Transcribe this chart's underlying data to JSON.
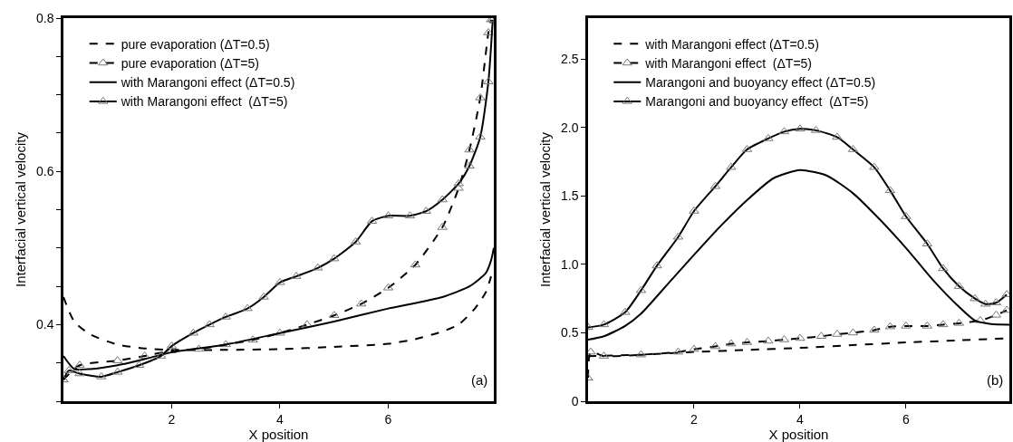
{
  "chart_data": [
    {
      "type": "line",
      "xlabel": "X position",
      "ylabel": "Interfacial vertical velocity",
      "xlim": [
        0,
        7.95
      ],
      "ylim": [
        0.3,
        0.8
      ],
      "xticks": [
        2,
        4,
        6
      ],
      "yticks": [
        {
          "value": 0.3,
          "label": null
        },
        {
          "value": 0.35,
          "label": null
        },
        0.4,
        {
          "value": 0.45,
          "label": null
        },
        {
          "value": 0.5,
          "label": null
        },
        {
          "value": 0.55,
          "label": null
        },
        0.6,
        {
          "value": 0.65,
          "label": null
        },
        {
          "value": 0.7,
          "label": null
        },
        {
          "value": 0.75,
          "label": null
        },
        0.8
      ],
      "grid": false,
      "legend": "top left",
      "annotations": [
        "(a)"
      ],
      "series": [
        {
          "name": "pure evaporation (ΔT=0.5)",
          "color": "#000000",
          "line_style": "dashed",
          "marker": "none",
          "x": [
            0,
            0.2,
            0.5,
            1,
            1.5,
            2,
            3,
            4,
            5,
            6,
            6.5,
            7,
            7.3,
            7.6,
            7.8,
            7.9
          ],
          "values": [
            0.436,
            0.404,
            0.387,
            0.374,
            0.369,
            0.367,
            0.367,
            0.368,
            0.371,
            0.375,
            0.381,
            0.391,
            0.4,
            0.421,
            0.442,
            0.463
          ]
        },
        {
          "name": "pure evaporation (ΔT=5)",
          "color": "#000000",
          "line_style": "dashed",
          "marker": "triangle",
          "x": [
            0,
            0.3,
            1,
            1.5,
            2,
            2.5,
            3,
            3.5,
            4,
            4.5,
            5,
            5.5,
            6,
            6.5,
            7,
            7.3,
            7.5,
            7.7,
            7.85,
            7.9
          ],
          "values": [
            0.328,
            0.347,
            0.353,
            0.359,
            0.366,
            0.368,
            0.374,
            0.38,
            0.389,
            0.4,
            0.412,
            0.427,
            0.448,
            0.478,
            0.527,
            0.578,
            0.628,
            0.696,
            0.781,
            0.798
          ]
        },
        {
          "name": "with Marangoni effect (ΔT=0.5)",
          "color": "#000000",
          "line_style": "solid",
          "marker": "none",
          "x": [
            0,
            0.2,
            0.5,
            1,
            1.5,
            2,
            3,
            4,
            5,
            6,
            7,
            7.5,
            7.8,
            7.9,
            7.95
          ],
          "values": [
            0.359,
            0.342,
            0.342,
            0.347,
            0.355,
            0.364,
            0.374,
            0.389,
            0.404,
            0.421,
            0.436,
            0.45,
            0.467,
            0.484,
            0.5
          ]
        },
        {
          "name": "with Marangoni effect  (ΔT=5)",
          "color": "#000000",
          "line_style": "solid",
          "marker": "triangle",
          "x": [
            0,
            0.1,
            0.3,
            0.7,
            1,
            1.4,
            1.8,
            2,
            2.4,
            2.7,
            3,
            3.4,
            3.7,
            4,
            4.3,
            4.7,
            5,
            5.4,
            5.7,
            6,
            6.4,
            6.7,
            7,
            7.3,
            7.5,
            7.7,
            7.85,
            7.93
          ],
          "values": [
            0.328,
            0.34,
            0.336,
            0.332,
            0.338,
            0.347,
            0.359,
            0.372,
            0.389,
            0.4,
            0.41,
            0.421,
            0.436,
            0.455,
            0.463,
            0.474,
            0.486,
            0.508,
            0.535,
            0.542,
            0.542,
            0.548,
            0.563,
            0.584,
            0.607,
            0.645,
            0.717,
            0.798
          ]
        }
      ]
    },
    {
      "type": "line",
      "xlabel": "X position",
      "ylabel": "Interfacial vertical velocity",
      "xlim": [
        0,
        7.95
      ],
      "ylim": [
        0,
        2.8
      ],
      "xticks": [
        2,
        4,
        6
      ],
      "yticks": [
        0,
        0.5,
        {
          "value": 1,
          "label": "1.0"
        },
        1.5,
        {
          "value": 2,
          "label": "2.0"
        },
        2.5
      ],
      "grid": false,
      "legend": "top left",
      "annotations": [
        "(b)"
      ],
      "series": [
        {
          "name": "with Marangoni effect (ΔT=0.5)",
          "color": "#000000",
          "line_style": "dashed",
          "marker": "none",
          "x": [
            0,
            1,
            2,
            3,
            4,
            5,
            6,
            7,
            7.9
          ],
          "values": [
            0.33,
            0.34,
            0.36,
            0.375,
            0.39,
            0.41,
            0.43,
            0.445,
            0.46
          ]
        },
        {
          "name": "with Marangoni effect  (ΔT=5)",
          "color": "#000000",
          "line_style": "dashed",
          "marker": "triangle",
          "x": [
            0,
            0.05,
            0.3,
            1,
            1.7,
            2,
            2.4,
            2.7,
            3,
            3.4,
            3.7,
            4,
            4.4,
            4.7,
            5,
            5.4,
            5.7,
            6,
            6.4,
            6.7,
            7,
            7.4,
            7.7,
            7.9
          ],
          "values": [
            0.17,
            0.36,
            0.33,
            0.34,
            0.36,
            0.38,
            0.4,
            0.42,
            0.43,
            0.44,
            0.45,
            0.46,
            0.475,
            0.49,
            0.5,
            0.52,
            0.545,
            0.55,
            0.55,
            0.56,
            0.57,
            0.59,
            0.63,
            0.665
          ]
        },
        {
          "name": "Marangoni and buoyancy effect (ΔT=0.5)",
          "color": "#000000",
          "line_style": "solid",
          "marker": "none",
          "x": [
            0,
            0.3,
            0.7,
            1,
            1.5,
            2,
            2.5,
            3,
            3.5,
            4,
            4.5,
            5,
            5.5,
            6,
            6.5,
            7,
            7.3,
            7.6,
            7.95
          ],
          "values": [
            0.45,
            0.475,
            0.55,
            0.64,
            0.855,
            1.07,
            1.28,
            1.47,
            1.63,
            1.69,
            1.65,
            1.52,
            1.33,
            1.12,
            0.89,
            0.69,
            0.59,
            0.565,
            0.56
          ]
        },
        {
          "name": "Marangoni and buoyancy effect  (ΔT=5)",
          "color": "#000000",
          "line_style": "solid",
          "marker": "triangle",
          "x": [
            0,
            0.3,
            0.7,
            1,
            1.3,
            1.7,
            2,
            2.4,
            2.7,
            3,
            3.4,
            3.7,
            4,
            4.3,
            4.7,
            5,
            5.4,
            5.7,
            6,
            6.4,
            6.7,
            7,
            7.3,
            7.5,
            7.7,
            7.9
          ],
          "values": [
            0.54,
            0.56,
            0.65,
            0.81,
            0.99,
            1.2,
            1.39,
            1.57,
            1.71,
            1.84,
            1.92,
            1.97,
            1.99,
            1.98,
            1.93,
            1.84,
            1.71,
            1.54,
            1.35,
            1.15,
            0.97,
            0.84,
            0.75,
            0.71,
            0.72,
            0.78
          ]
        }
      ]
    }
  ]
}
